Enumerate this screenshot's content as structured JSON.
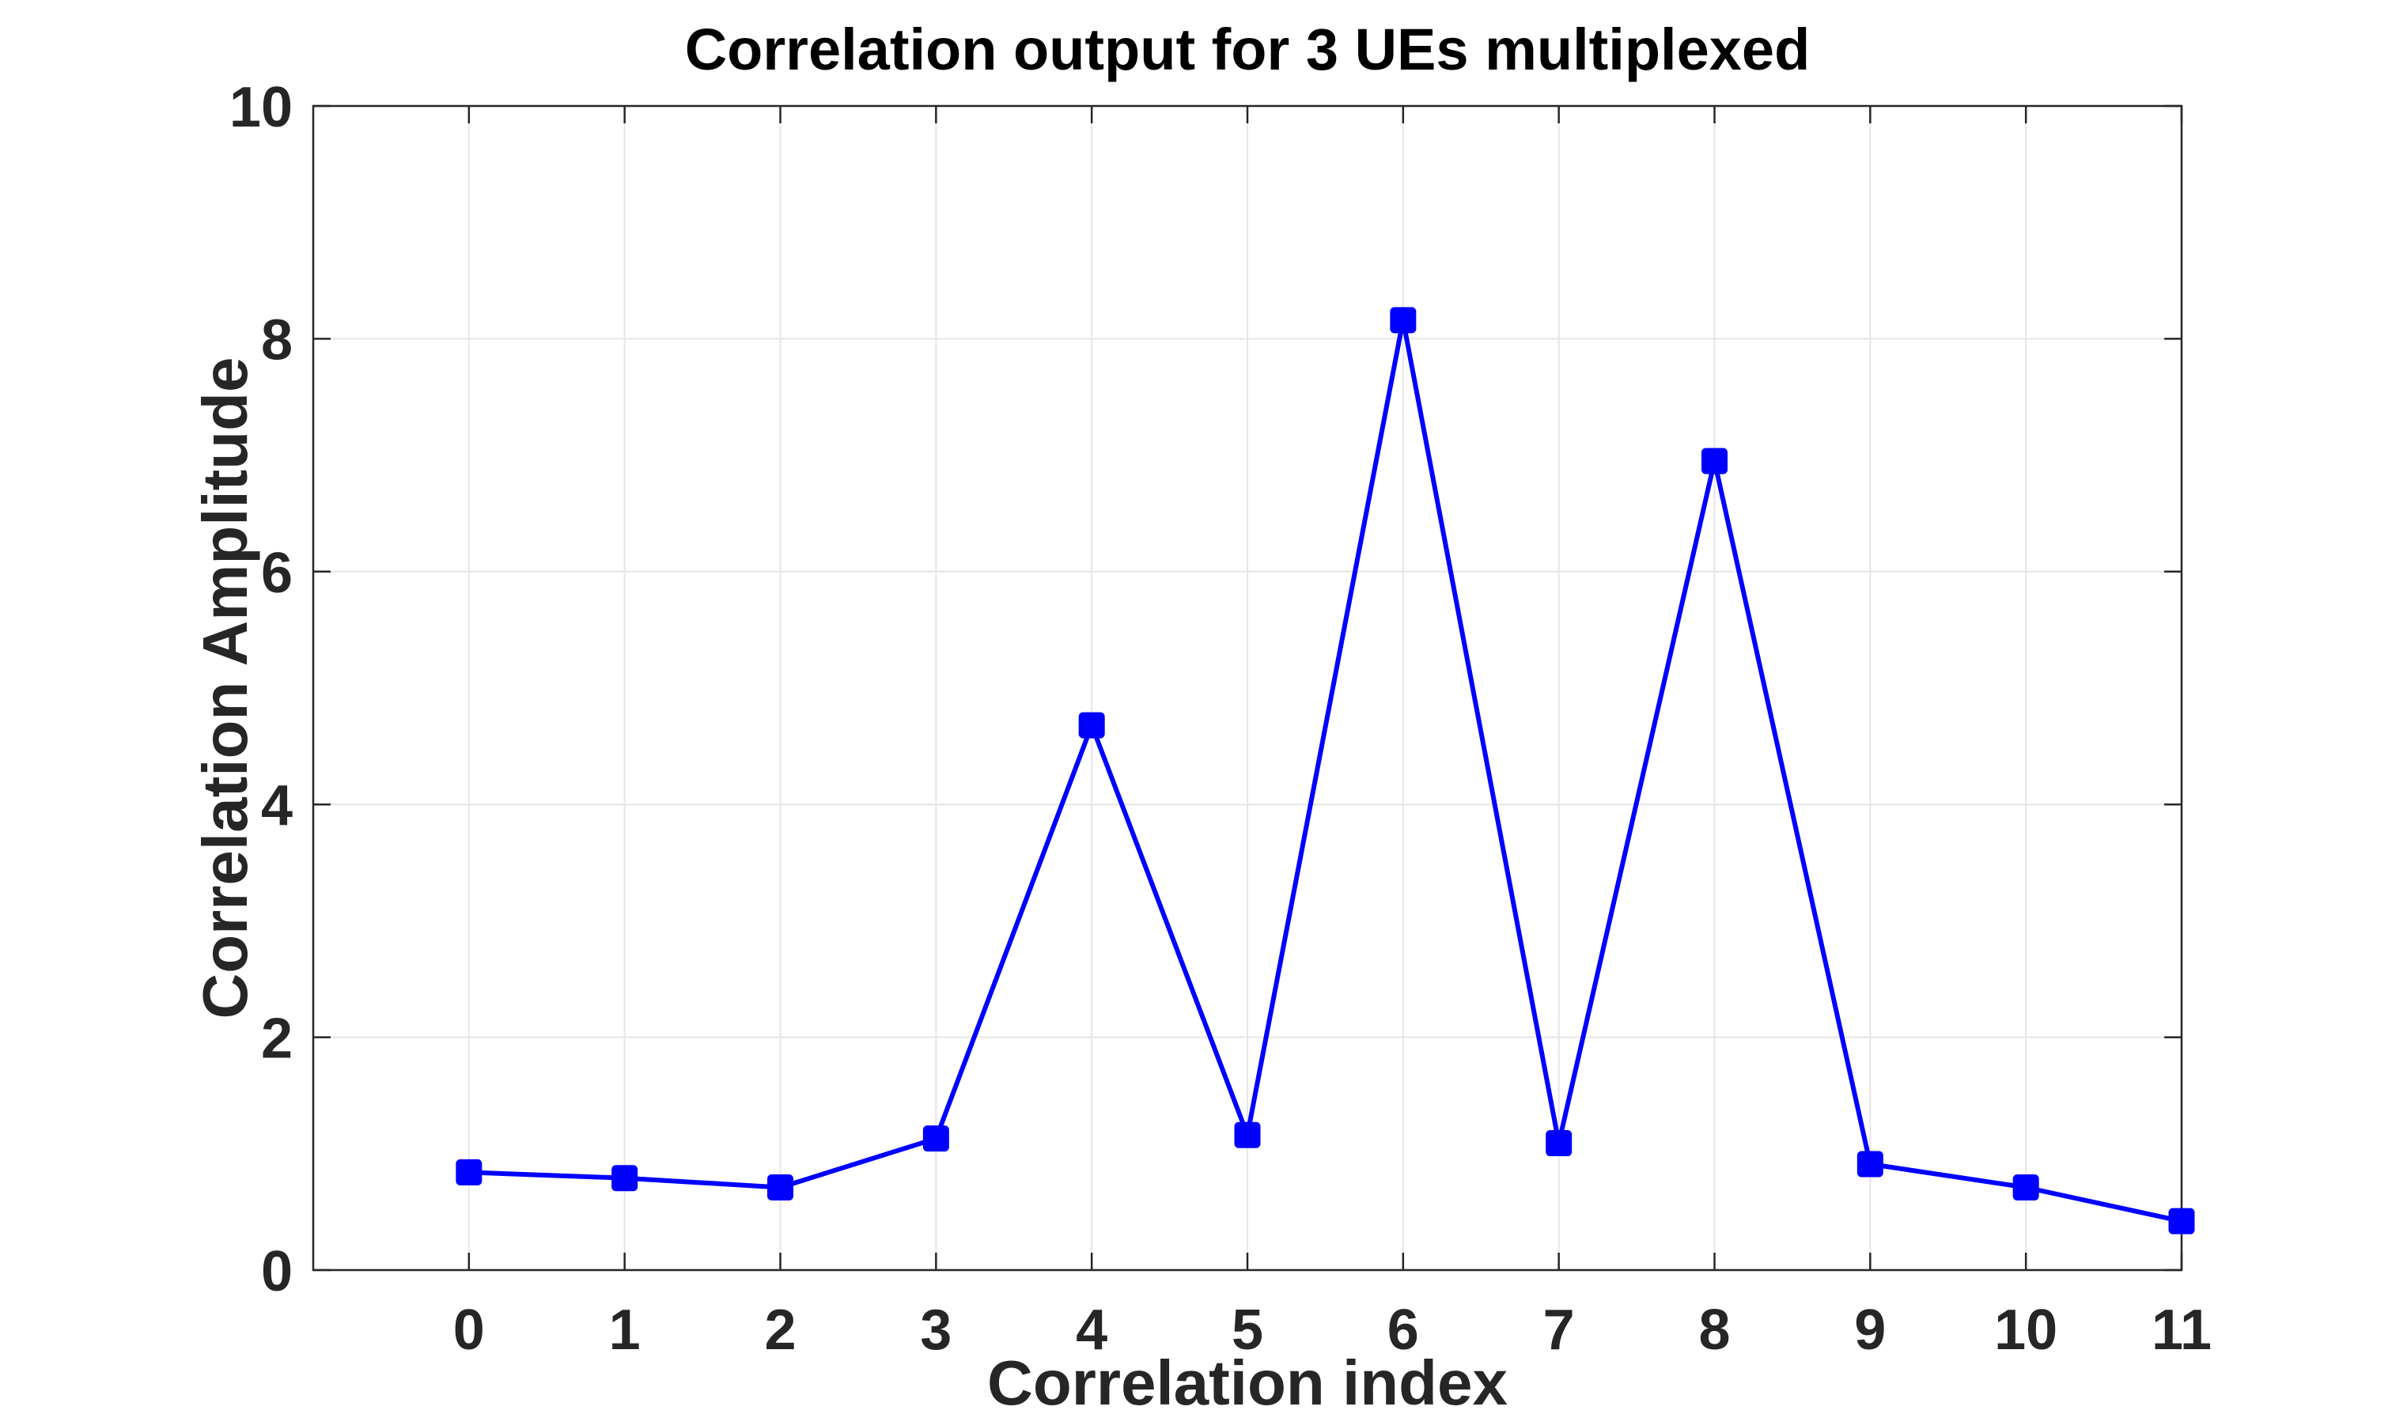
{
  "chart_data": {
    "type": "line",
    "title": "Correlation output for 3 UEs multiplexed",
    "xlabel": "Correlation index",
    "ylabel": "Correlation Amplitude",
    "xlim": [
      -1,
      11
    ],
    "ylim": [
      0,
      10
    ],
    "xticks": [
      0,
      1,
      2,
      3,
      4,
      5,
      6,
      7,
      8,
      9,
      10,
      11
    ],
    "yticks": [
      0,
      2,
      4,
      6,
      8,
      10
    ],
    "grid": true,
    "legend": "none",
    "series": [
      {
        "x": [
          0,
          1,
          2,
          3,
          4,
          5,
          6,
          7,
          8,
          9,
          10,
          11
        ],
        "values": [
          0.84,
          0.79,
          0.71,
          1.13,
          4.68,
          1.16,
          8.16,
          1.09,
          6.95,
          0.91,
          0.71,
          0.42
        ],
        "color": "#0000ff",
        "marker": "square"
      }
    ]
  }
}
